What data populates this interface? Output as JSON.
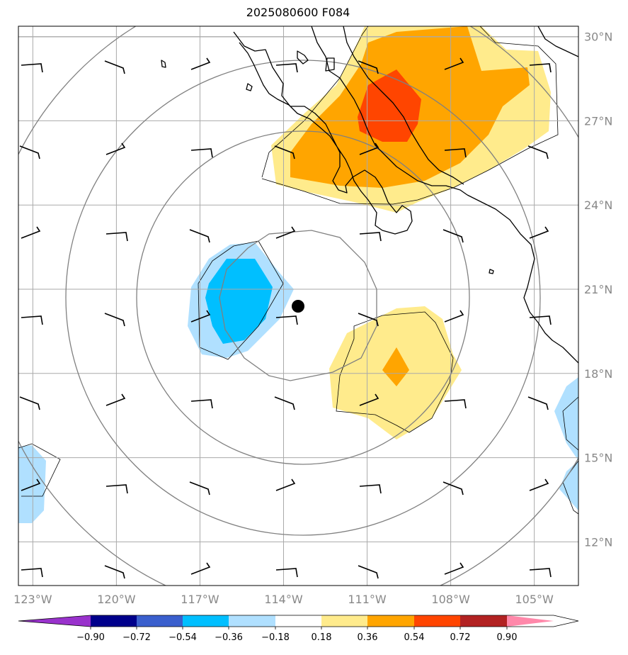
{
  "title": "2025080600 F084",
  "map": {
    "lon_range": [
      -124,
      -103
    ],
    "lat_range": [
      10.5,
      30.5
    ],
    "gridline_color": "#aaaaaa",
    "coastline_color": "#000000",
    "range_ring_color": "#808080",
    "storm_center": {
      "lon": -113.6,
      "lat": 20.4
    }
  },
  "lon_labels": [
    {
      "lon": -123,
      "text": "123°W"
    },
    {
      "lon": -120,
      "text": "120°W"
    },
    {
      "lon": -117,
      "text": "117°W"
    },
    {
      "lon": -114,
      "text": "114°W"
    },
    {
      "lon": -111,
      "text": "111°W"
    },
    {
      "lon": -108,
      "text": "108°W"
    },
    {
      "lon": -105,
      "text": "105°W"
    }
  ],
  "lat_labels": [
    {
      "lat": 30,
      "text": "30°N"
    },
    {
      "lat": 27,
      "text": "27°N"
    },
    {
      "lat": 24,
      "text": "24°N"
    },
    {
      "lat": 21,
      "text": "21°N"
    },
    {
      "lat": 18,
      "text": "18°N"
    },
    {
      "lat": 15,
      "text": "15°N"
    },
    {
      "lat": 12,
      "text": "12°N"
    }
  ],
  "colorbar": {
    "colors": [
      "#9932cc",
      "#00008b",
      "#3a5fcd",
      "#00bfff",
      "#b0e0ff",
      "#ffffff",
      "#ffeb8c",
      "#ffa500",
      "#ff4500",
      "#b22222",
      "#ff88aa"
    ],
    "ticks": [
      "−0.90",
      "−0.72",
      "−0.54",
      "−0.36",
      "−0.18",
      "0.18",
      "0.36",
      "0.54",
      "0.72",
      "0.90"
    ]
  }
}
